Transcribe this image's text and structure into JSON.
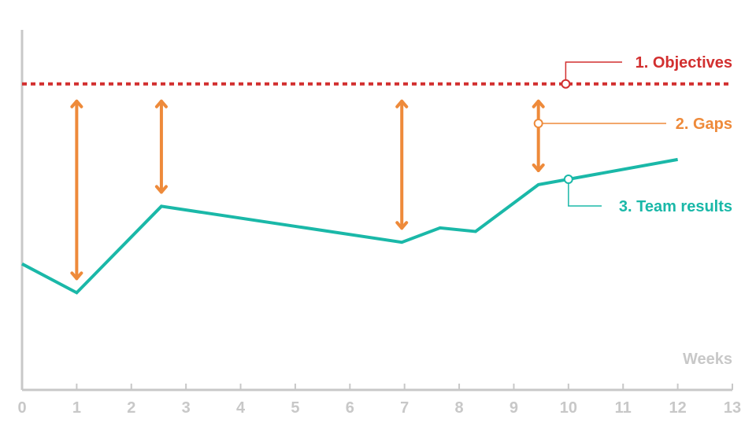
{
  "chart_data": {
    "type": "line",
    "xlabel": "Weeks",
    "xlim": [
      0,
      13
    ],
    "x_ticks": [
      "0",
      "1",
      "2",
      "3",
      "4",
      "5",
      "6",
      "7",
      "8",
      "9",
      "10",
      "11",
      "12",
      "13"
    ],
    "grid": false,
    "series": [
      {
        "name": "3. Team results",
        "color": "#1ab8a8",
        "x": [
          0,
          1,
          2.55,
          6.95,
          7.65,
          8.3,
          9.45,
          12
        ],
        "y": [
          35,
          27,
          51,
          41,
          45,
          44,
          57,
          64
        ]
      }
    ],
    "objective": {
      "name": "1. Objectives",
      "color": "#d22f2f",
      "value": 85,
      "style": "dotted"
    },
    "gaps": {
      "name": "2. Gaps",
      "color": "#ee8a3a",
      "x": [
        1,
        2.55,
        6.95,
        9.45
      ]
    },
    "colors": {
      "axis": "#c8c8c8",
      "team_results": "#1ab8a8",
      "objectives": "#d22f2f",
      "gaps": "#ee8a3a"
    }
  }
}
